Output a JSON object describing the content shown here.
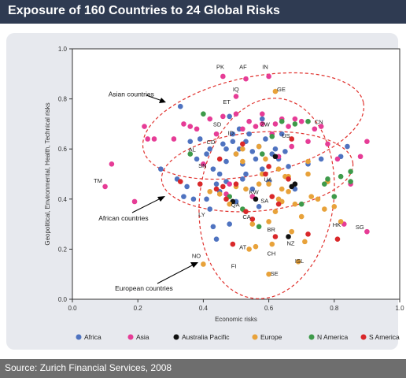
{
  "header": {
    "title": "Exposure of 160 Countries to 24 Global Risks"
  },
  "footer": {
    "source": "Source: Zurich Financial Services, 2008"
  },
  "colors": {
    "Africa": "#4f73c0",
    "Asia": "#e63c96",
    "Australia Pacific": "#111111",
    "Europe": "#e8a23a",
    "N America": "#3e9a4a",
    "S America": "#d9282a",
    "ellipse": "#e0322e",
    "grid": "#cfd3da"
  },
  "chart_data": {
    "type": "scatter",
    "xlabel": "Economic risks",
    "ylabel": "Geopolitical, Environmental, Health, Technical risks",
    "xlim": [
      0,
      1
    ],
    "ylim": [
      0,
      1
    ],
    "xticks": [
      "0.0",
      "0.2",
      "0.4",
      "0.6",
      "0.8",
      "1.0"
    ],
    "yticks": [
      "0.0",
      "0.2",
      "0.4",
      "0.6",
      "0.8",
      "1.0"
    ],
    "grid": false,
    "legend_position": "bottom",
    "legend": [
      "Africa",
      "Asia",
      "Australia Pacific",
      "Europe",
      "N America",
      "S America"
    ],
    "series": [
      {
        "name": "Africa",
        "points": [
          [
            0.27,
            0.52
          ],
          [
            0.32,
            0.48
          ],
          [
            0.33,
            0.77
          ],
          [
            0.34,
            0.41
          ],
          [
            0.35,
            0.45
          ],
          [
            0.36,
            0.63
          ],
          [
            0.37,
            0.4
          ],
          [
            0.38,
            0.56
          ],
          [
            0.39,
            0.64
          ],
          [
            0.41,
            0.58
          ],
          [
            0.42,
            0.6
          ],
          [
            0.43,
            0.52
          ],
          [
            0.44,
            0.46
          ],
          [
            0.45,
            0.43
          ],
          [
            0.46,
            0.62
          ],
          [
            0.47,
            0.55
          ],
          [
            0.48,
            0.73
          ],
          [
            0.49,
            0.63
          ],
          [
            0.5,
            0.58
          ],
          [
            0.51,
            0.6
          ],
          [
            0.52,
            0.48
          ],
          [
            0.53,
            0.5
          ],
          [
            0.54,
            0.66
          ],
          [
            0.55,
            0.44
          ],
          [
            0.56,
            0.56
          ],
          [
            0.57,
            0.61
          ],
          [
            0.58,
            0.52
          ],
          [
            0.59,
            0.64
          ],
          [
            0.6,
            0.47
          ],
          [
            0.61,
            0.58
          ],
          [
            0.62,
            0.6
          ],
          [
            0.63,
            0.56
          ],
          [
            0.64,
            0.66
          ],
          [
            0.65,
            0.59
          ],
          [
            0.66,
            0.53
          ],
          [
            0.68,
            0.44
          ],
          [
            0.72,
            0.54
          ],
          [
            0.76,
            0.56
          ],
          [
            0.82,
            0.57
          ],
          [
            0.84,
            0.61
          ],
          [
            0.41,
            0.4
          ],
          [
            0.43,
            0.29
          ],
          [
            0.44,
            0.24
          ],
          [
            0.47,
            0.6
          ],
          [
            0.52,
            0.54
          ],
          [
            0.49,
            0.66
          ],
          [
            0.45,
            0.5
          ],
          [
            0.53,
            0.63
          ],
          [
            0.58,
            0.72
          ],
          [
            0.57,
            0.37
          ],
          [
            0.48,
            0.3
          ],
          [
            0.51,
            0.68
          ],
          [
            0.5,
            0.39
          ],
          [
            0.55,
            0.59
          ],
          [
            0.42,
            0.36
          ],
          [
            0.47,
            0.47
          ]
        ]
      },
      {
        "name": "Asia",
        "points": [
          [
            0.1,
            0.45
          ],
          [
            0.12,
            0.54
          ],
          [
            0.19,
            0.39
          ],
          [
            0.22,
            0.69
          ],
          [
            0.23,
            0.64
          ],
          [
            0.25,
            0.64
          ],
          [
            0.31,
            0.64
          ],
          [
            0.34,
            0.7
          ],
          [
            0.36,
            0.69
          ],
          [
            0.38,
            0.68
          ],
          [
            0.4,
            0.54
          ],
          [
            0.42,
            0.72
          ],
          [
            0.44,
            0.66
          ],
          [
            0.46,
            0.89
          ],
          [
            0.46,
            0.73
          ],
          [
            0.48,
            0.46
          ],
          [
            0.5,
            0.74
          ],
          [
            0.52,
            0.68
          ],
          [
            0.53,
            0.88
          ],
          [
            0.54,
            0.71
          ],
          [
            0.58,
            0.7
          ],
          [
            0.6,
            0.89
          ],
          [
            0.61,
            0.66
          ],
          [
            0.62,
            0.7
          ],
          [
            0.64,
            0.72
          ],
          [
            0.66,
            0.69
          ],
          [
            0.67,
            0.61
          ],
          [
            0.7,
            0.71
          ],
          [
            0.72,
            0.63
          ],
          [
            0.74,
            0.68
          ],
          [
            0.76,
            0.69
          ],
          [
            0.78,
            0.62
          ],
          [
            0.81,
            0.56
          ],
          [
            0.83,
            0.3
          ],
          [
            0.85,
            0.46
          ],
          [
            0.88,
            0.57
          ],
          [
            0.9,
            0.63
          ],
          [
            0.9,
            0.27
          ],
          [
            0.58,
            0.74
          ],
          [
            0.56,
            0.69
          ],
          [
            0.5,
            0.81
          ],
          [
            0.63,
            0.57
          ],
          [
            0.68,
            0.72
          ],
          [
            0.47,
            0.42
          ],
          [
            0.55,
            0.41
          ]
        ]
      },
      {
        "name": "Australia Pacific",
        "points": [
          [
            0.56,
            0.4
          ],
          [
            0.62,
            0.57
          ],
          [
            0.66,
            0.25
          ],
          [
            0.67,
            0.45
          ],
          [
            0.68,
            0.46
          ],
          [
            0.49,
            0.39
          ]
        ]
      },
      {
        "name": "Europe",
        "points": [
          [
            0.4,
            0.14
          ],
          [
            0.42,
            0.43
          ],
          [
            0.45,
            0.42
          ],
          [
            0.48,
            0.38
          ],
          [
            0.5,
            0.58
          ],
          [
            0.52,
            0.6
          ],
          [
            0.53,
            0.44
          ],
          [
            0.54,
            0.2
          ],
          [
            0.55,
            0.3
          ],
          [
            0.56,
            0.21
          ],
          [
            0.57,
            0.46
          ],
          [
            0.58,
            0.5
          ],
          [
            0.59,
            0.56
          ],
          [
            0.6,
            0.1
          ],
          [
            0.61,
            0.22
          ],
          [
            0.62,
            0.83
          ],
          [
            0.62,
            0.35
          ],
          [
            0.63,
            0.4
          ],
          [
            0.64,
            0.44
          ],
          [
            0.65,
            0.49
          ],
          [
            0.66,
            0.43
          ],
          [
            0.67,
            0.27
          ],
          [
            0.68,
            0.38
          ],
          [
            0.69,
            0.15
          ],
          [
            0.7,
            0.33
          ],
          [
            0.71,
            0.23
          ],
          [
            0.72,
            0.55
          ],
          [
            0.73,
            0.41
          ],
          [
            0.75,
            0.4
          ],
          [
            0.77,
            0.36
          ],
          [
            0.78,
            0.47
          ],
          [
            0.8,
            0.37
          ],
          [
            0.82,
            0.31
          ],
          [
            0.6,
            0.31
          ],
          [
            0.63,
            0.52
          ],
          [
            0.66,
            0.49
          ],
          [
            0.52,
            0.55
          ],
          [
            0.57,
            0.61
          ],
          [
            0.6,
            0.46
          ],
          [
            0.64,
            0.39
          ],
          [
            0.5,
            0.45
          ],
          [
            0.72,
            0.5
          ]
        ]
      },
      {
        "name": "N America",
        "points": [
          [
            0.36,
            0.58
          ],
          [
            0.4,
            0.74
          ],
          [
            0.52,
            0.36
          ],
          [
            0.57,
            0.29
          ],
          [
            0.61,
            0.65
          ],
          [
            0.64,
            0.71
          ],
          [
            0.68,
            0.7
          ],
          [
            0.7,
            0.38
          ],
          [
            0.72,
            0.71
          ],
          [
            0.77,
            0.46
          ],
          [
            0.78,
            0.48
          ],
          [
            0.8,
            0.41
          ],
          [
            0.82,
            0.49
          ],
          [
            0.85,
            0.51
          ],
          [
            0.85,
            0.47
          ],
          [
            0.48,
            0.41
          ],
          [
            0.58,
            0.58
          ]
        ]
      },
      {
        "name": "S America",
        "points": [
          [
            0.33,
            0.47
          ],
          [
            0.39,
            0.46
          ],
          [
            0.45,
            0.56
          ],
          [
            0.46,
            0.45
          ],
          [
            0.47,
            0.4
          ],
          [
            0.49,
            0.22
          ],
          [
            0.5,
            0.46
          ],
          [
            0.52,
            0.62
          ],
          [
            0.55,
            0.32
          ],
          [
            0.59,
            0.5
          ],
          [
            0.6,
            0.53
          ],
          [
            0.61,
            0.41
          ],
          [
            0.63,
            0.38
          ],
          [
            0.66,
            0.48
          ],
          [
            0.67,
            0.64
          ],
          [
            0.72,
            0.26
          ],
          [
            0.81,
            0.24
          ],
          [
            0.62,
            0.25
          ],
          [
            0.53,
            0.35
          ],
          [
            0.44,
            0.44
          ]
        ]
      }
    ],
    "country_labels": [
      {
        "text": "PK",
        "x": 0.44,
        "y": 0.92
      },
      {
        "text": "AF",
        "x": 0.51,
        "y": 0.92
      },
      {
        "text": "IN",
        "x": 0.58,
        "y": 0.92
      },
      {
        "text": "IQ",
        "x": 0.49,
        "y": 0.83
      },
      {
        "text": "GE",
        "x": 0.625,
        "y": 0.83
      },
      {
        "text": "ET",
        "x": 0.46,
        "y": 0.78
      },
      {
        "text": "CN",
        "x": 0.74,
        "y": 0.7
      },
      {
        "text": "ZW",
        "x": 0.575,
        "y": 0.69
      },
      {
        "text": "SD",
        "x": 0.43,
        "y": 0.69
      },
      {
        "text": "ID",
        "x": 0.475,
        "y": 0.655
      },
      {
        "text": "US",
        "x": 0.64,
        "y": 0.645
      },
      {
        "text": "CD",
        "x": 0.41,
        "y": 0.62
      },
      {
        "text": "AL",
        "x": 0.355,
        "y": 0.59
      },
      {
        "text": "SN",
        "x": 0.385,
        "y": 0.525
      },
      {
        "text": "UA",
        "x": 0.585,
        "y": 0.47
      },
      {
        "text": "TM",
        "x": 0.065,
        "y": 0.465
      },
      {
        "text": "KW",
        "x": 0.54,
        "y": 0.42
      },
      {
        "text": "SA",
        "x": 0.575,
        "y": 0.385
      },
      {
        "text": "QA",
        "x": 0.485,
        "y": 0.37
      },
      {
        "text": "LY",
        "x": 0.385,
        "y": 0.33
      },
      {
        "text": "CA",
        "x": 0.52,
        "y": 0.32
      },
      {
        "text": "HK",
        "x": 0.795,
        "y": 0.29
      },
      {
        "text": "SG",
        "x": 0.865,
        "y": 0.28
      },
      {
        "text": "BR",
        "x": 0.595,
        "y": 0.27
      },
      {
        "text": "NZ",
        "x": 0.655,
        "y": 0.215
      },
      {
        "text": "AT",
        "x": 0.51,
        "y": 0.2
      },
      {
        "text": "CH",
        "x": 0.595,
        "y": 0.175
      },
      {
        "text": "NO",
        "x": 0.365,
        "y": 0.165
      },
      {
        "text": "ISL",
        "x": 0.68,
        "y": 0.145
      },
      {
        "text": "FI",
        "x": 0.485,
        "y": 0.125
      },
      {
        "text": "SE",
        "x": 0.605,
        "y": 0.095
      }
    ],
    "annotations": [
      {
        "text": "Asian countries",
        "x": 0.11,
        "y": 0.81
      },
      {
        "text": "African countries",
        "x": 0.08,
        "y": 0.315
      },
      {
        "text": "European countries",
        "x": 0.13,
        "y": 0.035
      }
    ]
  }
}
